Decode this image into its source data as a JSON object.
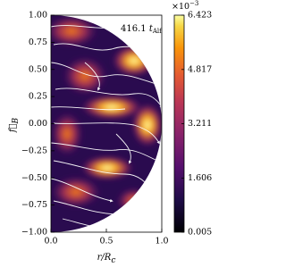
{
  "chart_data": {
    "type": "streamplot",
    "annotation": {
      "number": "416.1",
      "symbol": "t",
      "subscript": "Alf"
    },
    "xlabel": {
      "main": "r/R",
      "sub": "c"
    },
    "ylabel": {
      "main": "f⃗",
      "sub": "B"
    },
    "xlim": [
      0,
      1
    ],
    "xticks": [
      {
        "value": 0,
        "label": "0.0"
      },
      {
        "value": 0.5,
        "label": "0.5"
      },
      {
        "value": 1,
        "label": "1.0"
      }
    ],
    "ylim": [
      -1,
      1
    ],
    "yticks": [
      {
        "value": -1,
        "label": "−1.00"
      },
      {
        "value": -0.75,
        "label": "−0.75"
      },
      {
        "value": -0.5,
        "label": "−0.50"
      },
      {
        "value": -0.25,
        "label": "−0.25"
      },
      {
        "value": 0,
        "label": "0.00"
      },
      {
        "value": 0.25,
        "label": "0.25"
      },
      {
        "value": 0.5,
        "label": "0.50"
      },
      {
        "value": 0.75,
        "label": "0.75"
      },
      {
        "value": 1,
        "label": "1.00"
      }
    ],
    "colorbar": {
      "clim": [
        0.005,
        6.423
      ],
      "ticks": [
        0.005,
        1.606,
        3.211,
        4.817,
        6.423
      ],
      "scale_label": "×10",
      "scale_exponent": "−3",
      "colormap": "inferno"
    }
  }
}
